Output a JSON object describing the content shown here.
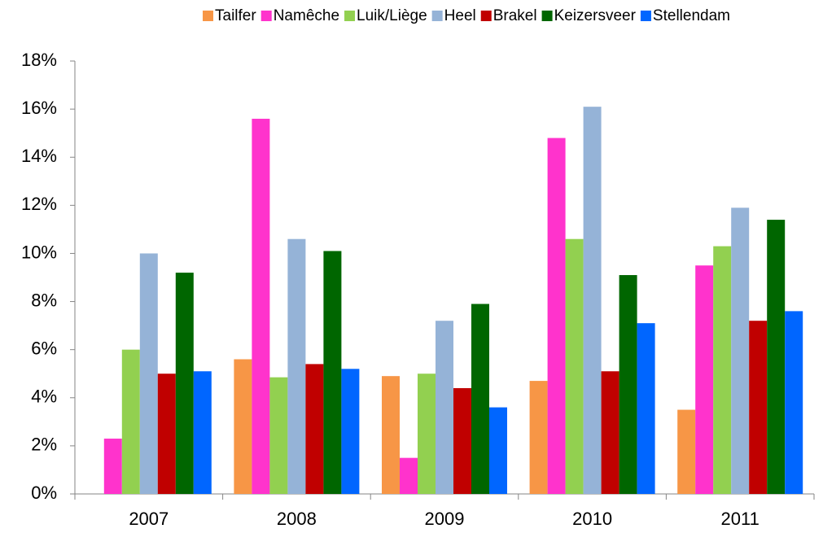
{
  "chart_data": {
    "type": "bar",
    "categories": [
      "2007",
      "2008",
      "2009",
      "2010",
      "2011"
    ],
    "series": [
      {
        "name": "Tailfer",
        "color": "#f79646",
        "values": [
          null,
          5.6,
          4.9,
          4.7,
          3.5
        ]
      },
      {
        "name": "Namêche",
        "color": "#ff33cc",
        "values": [
          2.3,
          15.6,
          1.5,
          14.8,
          9.5
        ]
      },
      {
        "name": "Luik/Liège",
        "color": "#92d050",
        "values": [
          6.0,
          4.85,
          5.0,
          10.6,
          10.3
        ]
      },
      {
        "name": "Heel",
        "color": "#95b3d7",
        "values": [
          10.0,
          10.6,
          7.2,
          16.1,
          11.9
        ]
      },
      {
        "name": "Brakel",
        "color": "#c00000",
        "values": [
          5.0,
          5.4,
          4.4,
          5.1,
          7.2
        ]
      },
      {
        "name": "Keizersveer",
        "color": "#006600",
        "values": [
          9.2,
          10.1,
          7.9,
          9.1,
          11.4
        ]
      },
      {
        "name": "Stellendam",
        "color": "#0066ff",
        "values": [
          5.1,
          5.2,
          3.6,
          7.1,
          7.6
        ]
      }
    ],
    "ylim": [
      0,
      18
    ],
    "yticks": [
      {
        "value": 0,
        "label": "0%"
      },
      {
        "value": 2,
        "label": "2%"
      },
      {
        "value": 4,
        "label": "4%"
      },
      {
        "value": 6,
        "label": "6%"
      },
      {
        "value": 8,
        "label": "8%"
      },
      {
        "value": 10,
        "label": "10%"
      },
      {
        "value": 12,
        "label": "12%"
      },
      {
        "value": 14,
        "label": "14%"
      },
      {
        "value": 16,
        "label": "16%"
      },
      {
        "value": 18,
        "label": "18%"
      }
    ],
    "grid": false,
    "legend": "top"
  }
}
